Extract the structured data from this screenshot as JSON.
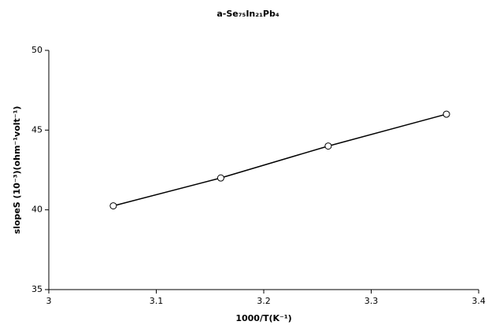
{
  "chart_data": {
    "type": "line",
    "title": "a-Se₇₅In₂₁Pb₄",
    "x_label": "1000/T(K⁻¹)",
    "y_label": "slopeS (10⁻³)(ohm⁻¹volt⁻¹)",
    "series": [
      {
        "color": "#000000",
        "marker": "circle",
        "x": [
          3.06,
          3.16,
          3.26,
          3.37
        ],
        "values": [
          40.25,
          42.0,
          44.0,
          46.0
        ]
      }
    ],
    "xlim": [
      3,
      3.4
    ],
    "xticks": [
      3,
      3.1,
      3.2,
      3.3,
      3.4
    ],
    "ylim": [
      35,
      50
    ],
    "yticks": [
      35,
      40,
      45,
      50
    ],
    "grid": false
  }
}
